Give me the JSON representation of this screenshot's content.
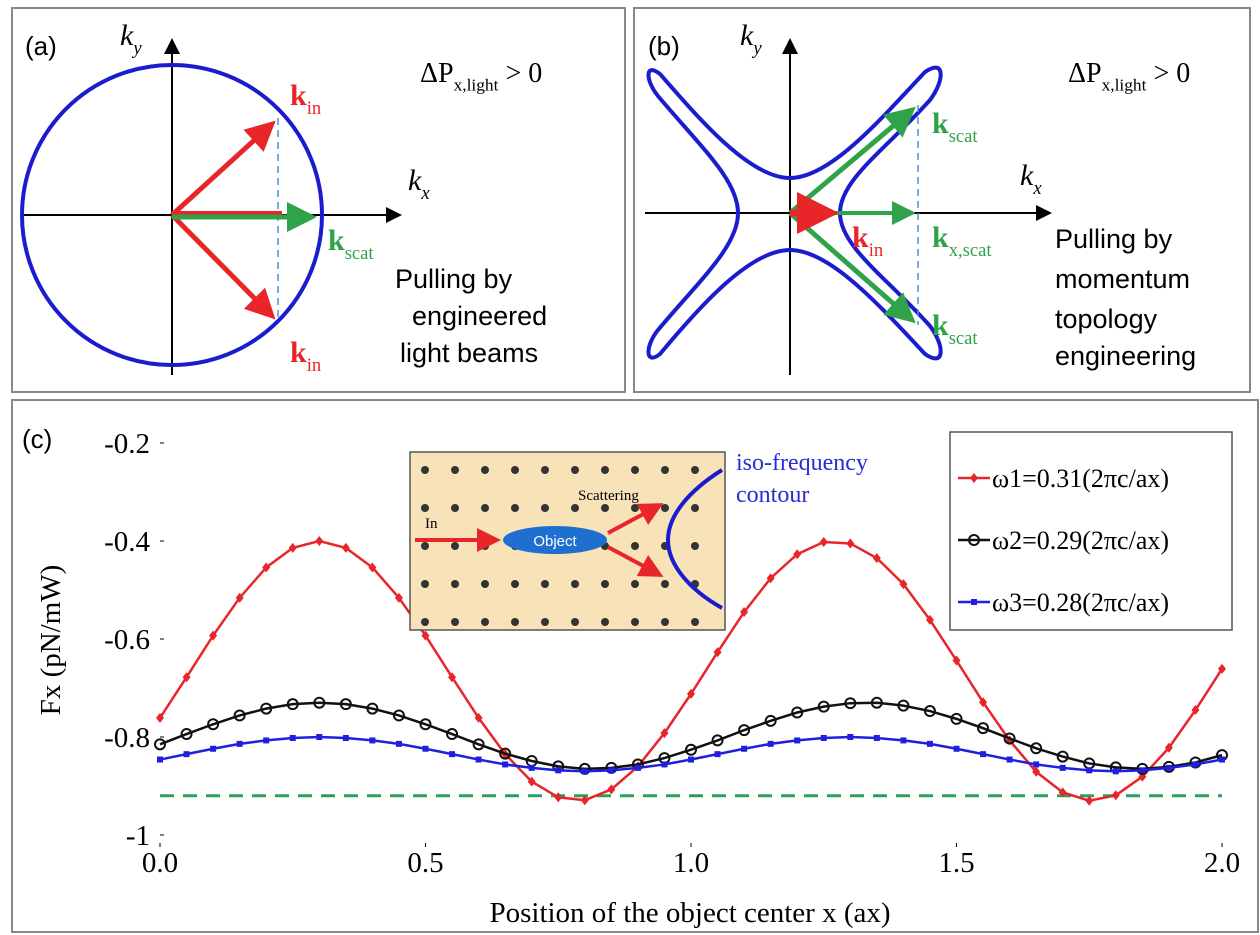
{
  "panel_a": {
    "label": "(a)",
    "ky": {
      "main": "k",
      "sub": "y"
    },
    "kx": {
      "main": "k",
      "sub": "x"
    },
    "delta_p": {
      "main": "ΔP",
      "sub": "x,light",
      "rest": " > 0"
    },
    "k_in_upper": {
      "main": "k",
      "sub": "in"
    },
    "k_scat": {
      "main": "k",
      "sub": "scat"
    },
    "k_in_lower": {
      "main": "k",
      "sub": "in"
    },
    "caption": [
      "Pulling by",
      "engineered",
      "light beams"
    ]
  },
  "panel_b": {
    "label": "(b)",
    "ky": {
      "main": "k",
      "sub": "y"
    },
    "kx": {
      "main": "k",
      "sub": "x"
    },
    "delta_p": {
      "main": "ΔP",
      "sub": "x,light",
      "rest": " > 0"
    },
    "k_scat_upper": {
      "main": "k",
      "sub": "scat"
    },
    "k_in": {
      "main": "k",
      "sub": "in"
    },
    "k_x_scat": {
      "main": "k",
      "sub": "x,scat"
    },
    "k_scat_lower": {
      "main": "k",
      "sub": "scat"
    },
    "caption": [
      "Pulling by",
      "momentum",
      "topology",
      "engineering"
    ]
  },
  "chart_data": {
    "type": "line",
    "panel_label": "(c)",
    "x_label": "Position of the object center x (ax)",
    "y_label": "Fx (pN/mW)",
    "xlim": [
      0,
      2
    ],
    "ylim": [
      -1,
      -0.2
    ],
    "xticks": [
      {
        "value": 0,
        "label": "0.0"
      },
      {
        "value": 0.5,
        "label": "0.5"
      },
      {
        "value": 1,
        "label": "1.0"
      },
      {
        "value": 1.5,
        "label": "1.5"
      },
      {
        "value": 2,
        "label": "2.0"
      }
    ],
    "yticks": [
      -0.2,
      -0.4,
      -0.6,
      -0.8,
      -1
    ],
    "x": [
      0,
      0.05,
      0.1,
      0.15,
      0.2,
      0.25,
      0.3,
      0.35,
      0.4,
      0.45,
      0.5,
      0.55,
      0.6,
      0.65,
      0.7,
      0.75,
      0.8,
      0.85,
      0.9,
      0.95,
      1,
      1.05,
      1.1,
      1.15,
      1.2,
      1.25,
      1.3,
      1.35,
      1.4,
      1.45,
      1.5,
      1.55,
      1.6,
      1.65,
      1.7,
      1.75,
      1.8,
      1.85,
      1.9,
      1.95,
      2
    ],
    "series": [
      {
        "name": "ω1=0.31(2πc/ax)",
        "color": "#e8262a",
        "marker": "plus",
        "values": [
          -0.761,
          -0.678,
          -0.593,
          -0.516,
          -0.454,
          -0.414,
          -0.4,
          -0.414,
          -0.454,
          -0.516,
          -0.593,
          -0.678,
          -0.761,
          -0.835,
          -0.891,
          -0.923,
          -0.929,
          -0.907,
          -0.86,
          -0.792,
          -0.712,
          -0.627,
          -0.545,
          -0.476,
          -0.427,
          -0.402,
          -0.405,
          -0.435,
          -0.488,
          -0.561,
          -0.644,
          -0.729,
          -0.807,
          -0.871,
          -0.913,
          -0.93,
          -0.919,
          -0.881,
          -0.822,
          -0.745,
          -0.661
        ]
      },
      {
        "name": "ω2=0.29(2πc/ax)",
        "color": "#111111",
        "marker": "circle",
        "values": [
          -0.815,
          -0.794,
          -0.774,
          -0.756,
          -0.742,
          -0.733,
          -0.73,
          -0.733,
          -0.742,
          -0.756,
          -0.774,
          -0.794,
          -0.815,
          -0.834,
          -0.849,
          -0.86,
          -0.865,
          -0.863,
          -0.856,
          -0.843,
          -0.826,
          -0.807,
          -0.786,
          -0.767,
          -0.75,
          -0.738,
          -0.731,
          -0.73,
          -0.736,
          -0.747,
          -0.763,
          -0.782,
          -0.803,
          -0.823,
          -0.84,
          -0.854,
          -0.862,
          -0.865,
          -0.861,
          -0.852,
          -0.837
        ]
      },
      {
        "name": "ω3=0.28(2πc/ax)",
        "color": "#1f1fe0",
        "marker": "square",
        "values": [
          -0.846,
          -0.835,
          -0.824,
          -0.814,
          -0.807,
          -0.802,
          -0.8,
          -0.802,
          -0.807,
          -0.814,
          -0.824,
          -0.835,
          -0.846,
          -0.856,
          -0.863,
          -0.868,
          -0.87,
          -0.868,
          -0.863,
          -0.856,
          -0.846,
          -0.835,
          -0.824,
          -0.814,
          -0.807,
          -0.802,
          -0.8,
          -0.802,
          -0.807,
          -0.814,
          -0.824,
          -0.835,
          -0.846,
          -0.856,
          -0.863,
          -0.868,
          -0.87,
          -0.868,
          -0.863,
          -0.856,
          -0.846
        ]
      }
    ],
    "reference_line": {
      "value": -0.92,
      "color": "#2ca05a"
    },
    "legend": "upper right",
    "inset": {
      "in": "In",
      "scattering": "Scattering",
      "object": "Object",
      "contour": [
        "iso-frequency",
        "contour"
      ]
    }
  }
}
